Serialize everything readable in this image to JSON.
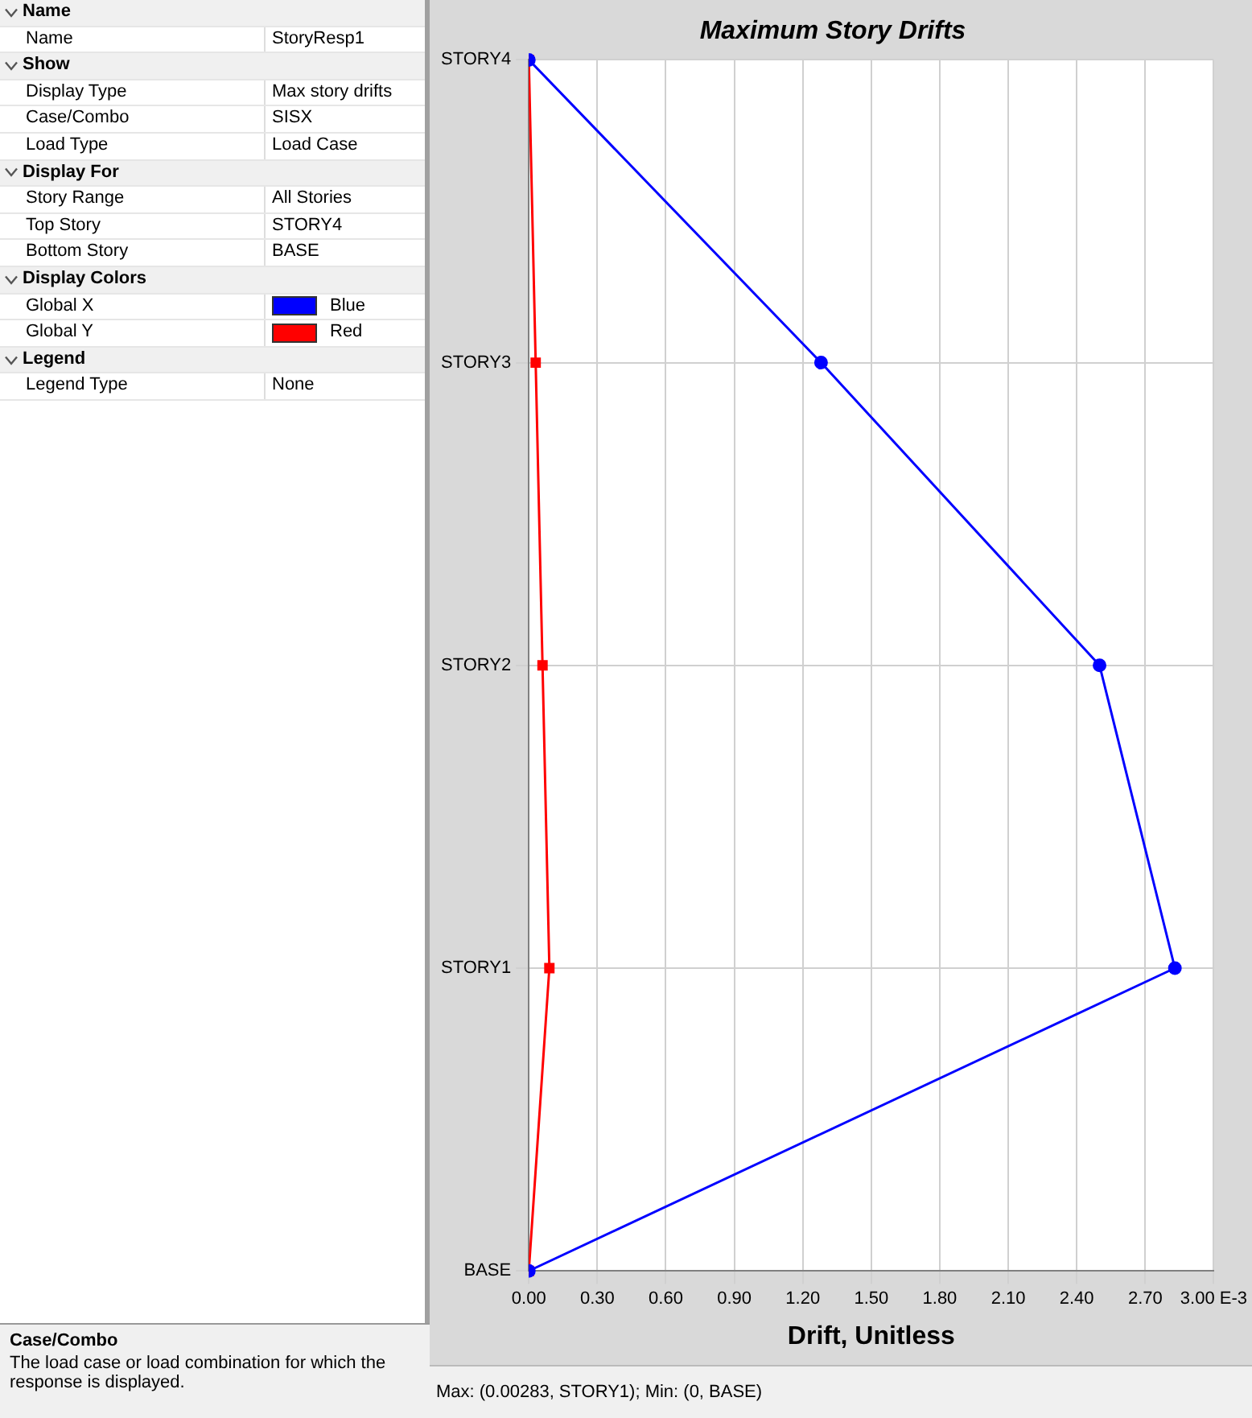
{
  "chart_data": [
    {
      "type": "other",
      "annotations": [
        "Name",
        "Name",
        "StoryResp1",
        "Show",
        "Display Type",
        "Max story drifts",
        "Case/Combo",
        "SISX",
        "Load Type",
        "Load Case",
        "Display For",
        "Story Range",
        "All Stories",
        "Top Story",
        "STORY4",
        "Bottom Story",
        "BASE",
        "Display Colors",
        "Global X",
        "Blue",
        "Global Y",
        "Red",
        "Legend",
        "Legend Type",
        "None",
        "Case/Combo",
        "The load case or load combination for which the response is displayed."
      ]
    },
    {
      "type": "line",
      "title": "Maximum Story Drifts",
      "xlabel": "Drift, Unitless",
      "orientation": "horizontal",
      "categories": [
        "STORY4",
        "STORY3",
        "STORY2",
        "STORY1",
        "BASE"
      ],
      "series": [
        {
          "color": "#0000ff",
          "marker": "circle",
          "values": [
            0,
            1.28,
            2.5,
            2.83,
            0
          ]
        },
        {
          "color": "#ff0000",
          "marker": "square",
          "values": [
            0,
            0.03,
            0.06,
            0.09,
            0
          ]
        }
      ],
      "xlim": [
        0,
        3
      ],
      "xticks": [
        {
          "value": 0,
          "label": "0.00"
        },
        {
          "value": 0.3,
          "label": "0.30"
        },
        {
          "value": 0.6,
          "label": "0.60"
        },
        {
          "value": 0.9,
          "label": "0.90"
        },
        {
          "value": 1.2,
          "label": "1.20"
        },
        {
          "value": 1.5,
          "label": "1.50"
        },
        {
          "value": 1.8,
          "label": "1.80"
        },
        {
          "value": 2.1,
          "label": "2.10"
        },
        {
          "value": 2.4,
          "label": "2.40"
        },
        {
          "value": 2.7,
          "label": "2.70"
        },
        {
          "value": 3,
          "label": "3.00 E-3"
        }
      ],
      "grid": true,
      "legend": false,
      "line_style": "solid",
      "annotations": [
        "Max: (0.00283, STORY1);  Min: (0, BASE)"
      ]
    }
  ]
}
